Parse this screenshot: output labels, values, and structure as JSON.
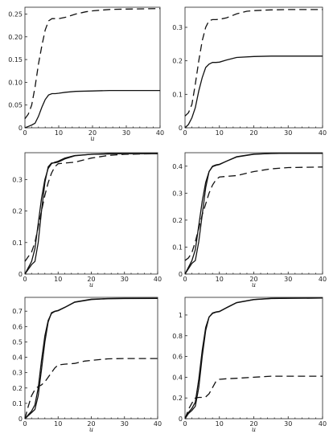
{
  "chart_data": [
    {
      "type": "line",
      "xlabel": "u",
      "xlim": [
        0,
        40
      ],
      "ylim": [
        0,
        0.265
      ],
      "xticks": [
        "0",
        "10",
        "20",
        "30",
        "40"
      ],
      "xtick_values": [
        0,
        10,
        20,
        30,
        40
      ],
      "yticks": [
        "0",
        "0.05",
        "0.10",
        "0.15",
        "0.20",
        "0.25"
      ],
      "ytick_values": [
        0,
        0.05,
        0.1,
        0.15,
        0.2,
        0.25
      ],
      "series": [
        {
          "style": "solid",
          "x": [
            0,
            1,
            2,
            3,
            4,
            5,
            6,
            7,
            8,
            9,
            10,
            12,
            15,
            20,
            25,
            30,
            40
          ],
          "y": [
            0,
            0.003,
            0.006,
            0.01,
            0.025,
            0.045,
            0.062,
            0.072,
            0.075,
            0.075,
            0.076,
            0.078,
            0.08,
            0.081,
            0.082,
            0.082,
            0.082
          ]
        },
        {
          "style": "dashed",
          "x": [
            0,
            1,
            2,
            3,
            4,
            5,
            6,
            7,
            8,
            9,
            10,
            12,
            15,
            18,
            20,
            25,
            30,
            40
          ],
          "y": [
            0.02,
            0.03,
            0.05,
            0.09,
            0.14,
            0.18,
            0.215,
            0.235,
            0.24,
            0.24,
            0.24,
            0.243,
            0.25,
            0.255,
            0.257,
            0.26,
            0.261,
            0.262
          ]
        }
      ]
    },
    {
      "type": "line",
      "xlabel": "",
      "xlim": [
        0,
        40
      ],
      "ylim": [
        0,
        0.36
      ],
      "xticks": [
        "0",
        "10",
        "20",
        "30",
        "40"
      ],
      "xtick_values": [
        0,
        10,
        20,
        30,
        40
      ],
      "yticks": [
        "0",
        "0.1",
        "0.2",
        "0.3"
      ],
      "ytick_values": [
        0,
        0.1,
        0.2,
        0.3
      ],
      "series": [
        {
          "style": "solid",
          "x": [
            0,
            1,
            2,
            3,
            4,
            5,
            6,
            7,
            8,
            9,
            10,
            12,
            15,
            20,
            25,
            30,
            40
          ],
          "y": [
            0,
            0.01,
            0.03,
            0.06,
            0.11,
            0.15,
            0.18,
            0.19,
            0.195,
            0.195,
            0.196,
            0.202,
            0.21,
            0.213,
            0.214,
            0.214,
            0.214
          ]
        },
        {
          "style": "dashed",
          "x": [
            0,
            1,
            2,
            3,
            4,
            5,
            6,
            7,
            8,
            9,
            10,
            12,
            15,
            18,
            20,
            25,
            30,
            40
          ],
          "y": [
            0.035,
            0.045,
            0.07,
            0.13,
            0.2,
            0.26,
            0.3,
            0.32,
            0.323,
            0.323,
            0.324,
            0.328,
            0.34,
            0.348,
            0.35,
            0.352,
            0.353,
            0.353
          ]
        }
      ]
    },
    {
      "type": "line",
      "xlabel": "u",
      "xlim": [
        0,
        40
      ],
      "ylim": [
        0,
        0.385
      ],
      "xticks": [
        "0",
        "10",
        "20",
        "30",
        "40"
      ],
      "xtick_values": [
        0,
        10,
        20,
        30,
        40
      ],
      "yticks": [
        "0",
        "0.1",
        "0.2",
        "0.3"
      ],
      "ytick_values": [
        0,
        0.1,
        0.2,
        0.3
      ],
      "series": [
        {
          "style": "solid",
          "x": [
            0,
            1,
            2,
            3,
            4,
            5,
            6,
            7,
            8,
            9,
            10,
            12,
            15,
            20,
            25,
            30,
            40
          ],
          "y": [
            0,
            0.015,
            0.03,
            0.04,
            0.1,
            0.2,
            0.29,
            0.34,
            0.352,
            0.353,
            0.355,
            0.365,
            0.375,
            0.38,
            0.382,
            0.382,
            0.382
          ]
        },
        {
          "style": "solid",
          "x": [
            0,
            1,
            2,
            3,
            4,
            5,
            6,
            7,
            8,
            9,
            10,
            12,
            15,
            20,
            25,
            30,
            40
          ],
          "y": [
            0,
            0.02,
            0.04,
            0.08,
            0.16,
            0.24,
            0.3,
            0.335,
            0.35,
            0.355,
            0.358,
            0.368,
            0.376,
            0.38,
            0.381,
            0.382,
            0.382
          ]
        },
        {
          "style": "dashed",
          "x": [
            0,
            1,
            2,
            3,
            4,
            5,
            6,
            7,
            8,
            9,
            10,
            12,
            15,
            20,
            25,
            30,
            40
          ],
          "y": [
            0.04,
            0.055,
            0.07,
            0.1,
            0.15,
            0.2,
            0.25,
            0.29,
            0.32,
            0.34,
            0.35,
            0.352,
            0.355,
            0.368,
            0.376,
            0.38,
            0.382
          ]
        }
      ]
    },
    {
      "type": "line",
      "xlabel": "u",
      "xlim": [
        0,
        40
      ],
      "ylim": [
        0,
        0.45
      ],
      "xticks": [
        "0",
        "10",
        "20",
        "30",
        "40"
      ],
      "xtick_values": [
        0,
        10,
        20,
        30,
        40
      ],
      "yticks": [
        "0",
        "0.1",
        "0.2",
        "0.3",
        "0.4"
      ],
      "ytick_values": [
        0,
        0.1,
        0.2,
        0.3,
        0.4
      ],
      "series": [
        {
          "style": "solid",
          "x": [
            0,
            1,
            2,
            3,
            4,
            5,
            6,
            7,
            8,
            9,
            10,
            12,
            15,
            20,
            25,
            30,
            40
          ],
          "y": [
            0,
            0.02,
            0.04,
            0.05,
            0.12,
            0.22,
            0.32,
            0.38,
            0.4,
            0.405,
            0.407,
            0.418,
            0.435,
            0.445,
            0.447,
            0.448,
            0.448
          ]
        },
        {
          "style": "solid",
          "x": [
            0,
            1,
            2,
            3,
            4,
            5,
            6,
            7,
            8,
            9,
            10,
            12,
            15,
            20,
            25,
            30,
            40
          ],
          "y": [
            0,
            0.025,
            0.05,
            0.09,
            0.18,
            0.27,
            0.34,
            0.38,
            0.398,
            0.403,
            0.406,
            0.418,
            0.434,
            0.444,
            0.447,
            0.448,
            0.448
          ]
        },
        {
          "style": "dashed",
          "x": [
            0,
            1,
            2,
            3,
            4,
            5,
            6,
            7,
            8,
            9,
            10,
            12,
            15,
            20,
            25,
            30,
            40
          ],
          "y": [
            0.05,
            0.06,
            0.08,
            0.12,
            0.17,
            0.22,
            0.26,
            0.3,
            0.33,
            0.35,
            0.36,
            0.362,
            0.365,
            0.38,
            0.39,
            0.395,
            0.397
          ]
        }
      ]
    },
    {
      "type": "line",
      "xlabel": "u",
      "xlim": [
        0,
        40
      ],
      "ylim": [
        0,
        0.79
      ],
      "xticks": [
        "0",
        "10",
        "20",
        "30",
        "40"
      ],
      "xtick_values": [
        0,
        10,
        20,
        30,
        40
      ],
      "yticks": [
        "0",
        "0.1",
        "0.2",
        "0.3",
        "0.4",
        "0.5",
        "0.6",
        "0.7"
      ],
      "ytick_values": [
        0,
        0.1,
        0.2,
        0.3,
        0.4,
        0.5,
        0.6,
        0.7
      ],
      "series": [
        {
          "style": "solid",
          "x": [
            0,
            1,
            2,
            3,
            4,
            5,
            6,
            7,
            8,
            9,
            10,
            12,
            15,
            20,
            25,
            30,
            40
          ],
          "y": [
            0,
            0.02,
            0.04,
            0.06,
            0.15,
            0.32,
            0.5,
            0.63,
            0.69,
            0.7,
            0.705,
            0.725,
            0.76,
            0.778,
            0.782,
            0.783,
            0.783
          ]
        },
        {
          "style": "solid",
          "x": [
            0,
            1,
            2,
            3,
            4,
            5,
            6,
            7,
            8,
            9,
            10,
            12,
            15,
            20,
            25,
            30,
            40
          ],
          "y": [
            0,
            0.025,
            0.05,
            0.09,
            0.2,
            0.38,
            0.54,
            0.64,
            0.685,
            0.698,
            0.703,
            0.724,
            0.758,
            0.776,
            0.781,
            0.782,
            0.783
          ]
        },
        {
          "style": "dashed",
          "x": [
            0,
            1,
            2,
            3,
            4,
            5,
            6,
            7,
            8,
            9,
            10,
            12,
            15,
            18,
            20,
            25,
            30,
            40
          ],
          "y": [
            0,
            0.08,
            0.15,
            0.19,
            0.21,
            0.22,
            0.24,
            0.27,
            0.3,
            0.33,
            0.35,
            0.355,
            0.36,
            0.375,
            0.38,
            0.39,
            0.392,
            0.392
          ]
        }
      ]
    },
    {
      "type": "line",
      "xlabel": "u",
      "xlim": [
        0,
        40
      ],
      "ylim": [
        0,
        1.17
      ],
      "xticks": [
        "0",
        "10",
        "20",
        "30",
        "40"
      ],
      "xtick_values": [
        0,
        10,
        20,
        30,
        40
      ],
      "yticks": [
        "0",
        "0.2",
        "0.4",
        "0.6",
        "0.8",
        "1"
      ],
      "ytick_values": [
        0,
        0.2,
        0.4,
        0.6,
        0.8,
        1.0
      ],
      "series": [
        {
          "style": "solid",
          "x": [
            0,
            1,
            2,
            3,
            4,
            5,
            6,
            7,
            8,
            9,
            10,
            12,
            15,
            20,
            25,
            30,
            40
          ],
          "y": [
            0,
            0.05,
            0.08,
            0.12,
            0.3,
            0.6,
            0.85,
            0.98,
            1.02,
            1.03,
            1.035,
            1.07,
            1.12,
            1.15,
            1.16,
            1.162,
            1.163
          ]
        },
        {
          "style": "solid",
          "x": [
            0,
            1,
            2,
            3,
            4,
            5,
            6,
            7,
            8,
            9,
            10,
            12,
            15,
            20,
            25,
            30,
            40
          ],
          "y": [
            0,
            0.06,
            0.1,
            0.16,
            0.38,
            0.66,
            0.88,
            0.98,
            1.015,
            1.027,
            1.033,
            1.068,
            1.118,
            1.148,
            1.158,
            1.161,
            1.163
          ]
        },
        {
          "style": "dashed",
          "x": [
            0,
            1,
            2,
            3,
            4,
            5,
            6,
            7,
            8,
            9,
            10,
            12,
            15,
            20,
            25,
            30,
            40
          ],
          "y": [
            0,
            0.09,
            0.15,
            0.2,
            0.205,
            0.205,
            0.21,
            0.24,
            0.3,
            0.36,
            0.38,
            0.385,
            0.39,
            0.4,
            0.41,
            0.41,
            0.41
          ]
        }
      ]
    }
  ]
}
